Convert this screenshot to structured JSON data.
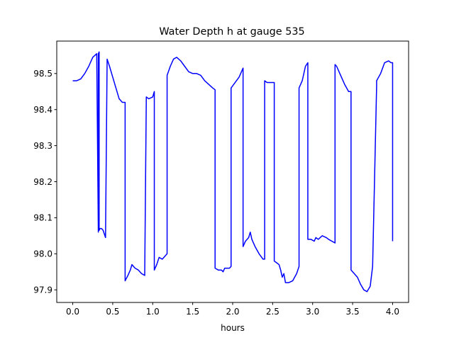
{
  "chart_data": {
    "type": "line",
    "title": "Water Depth h at gauge 535",
    "xlabel": "hours",
    "ylabel": "",
    "xlim": [
      -0.2,
      4.2
    ],
    "ylim": [
      97.865,
      98.59
    ],
    "xticks": [
      0.0,
      0.5,
      1.0,
      1.5,
      2.0,
      2.5,
      3.0,
      3.5,
      4.0
    ],
    "xtick_labels": [
      "0.0",
      "0.5",
      "1.0",
      "1.5",
      "2.0",
      "2.5",
      "3.0",
      "3.5",
      "4.0"
    ],
    "yticks": [
      97.9,
      98.0,
      98.1,
      98.2,
      98.3,
      98.4,
      98.5
    ],
    "ytick_labels": [
      "97.9",
      "98.0",
      "98.1",
      "98.2",
      "98.3",
      "98.4",
      "98.5"
    ],
    "grid": false,
    "colors": {
      "series": "#0000ff"
    },
    "series": [
      {
        "name": "",
        "x": [
          0.0,
          0.05,
          0.1,
          0.15,
          0.2,
          0.25,
          0.3,
          0.32,
          0.32,
          0.33,
          0.33,
          0.34,
          0.36,
          0.38,
          0.41,
          0.43,
          0.43,
          0.46,
          0.5,
          0.54,
          0.58,
          0.62,
          0.655,
          0.655,
          0.69,
          0.72,
          0.74,
          0.76,
          0.78,
          0.82,
          0.86,
          0.9,
          0.92,
          0.92,
          0.95,
          1.0,
          1.02,
          1.02,
          1.05,
          1.08,
          1.12,
          1.18,
          1.18,
          1.22,
          1.26,
          1.3,
          1.35,
          1.4,
          1.45,
          1.5,
          1.55,
          1.6,
          1.65,
          1.7,
          1.75,
          1.78,
          1.78,
          1.82,
          1.86,
          1.88,
          1.9,
          1.96,
          1.98,
          1.98,
          2.03,
          2.08,
          2.13,
          2.13,
          2.16,
          2.2,
          2.22,
          2.24,
          2.28,
          2.33,
          2.38,
          2.4,
          2.4,
          2.43,
          2.47,
          2.52,
          2.52,
          2.55,
          2.58,
          2.6,
          2.62,
          2.64,
          2.66,
          2.7,
          2.75,
          2.8,
          2.83,
          2.83,
          2.87,
          2.91,
          2.94,
          2.94,
          2.98,
          3.02,
          3.04,
          3.07,
          3.12,
          3.17,
          3.2,
          3.24,
          3.28,
          3.28,
          3.3,
          3.34,
          3.4,
          3.45,
          3.48,
          3.48,
          3.52,
          3.56,
          3.6,
          3.64,
          3.68,
          3.72,
          3.75,
          3.8,
          3.8,
          3.85,
          3.9,
          3.95,
          3.98,
          4.0,
          4.0
        ],
        "values": [
          98.48,
          98.48,
          98.485,
          98.5,
          98.52,
          98.545,
          98.555,
          98.06,
          98.555,
          98.56,
          98.065,
          98.07,
          98.07,
          98.065,
          98.045,
          98.54,
          98.54,
          98.52,
          98.49,
          98.46,
          98.43,
          98.42,
          98.42,
          97.925,
          97.94,
          97.955,
          97.97,
          97.965,
          97.96,
          97.955,
          97.945,
          97.94,
          98.435,
          98.435,
          98.43,
          98.435,
          98.45,
          97.955,
          97.97,
          97.99,
          97.985,
          98.0,
          98.495,
          98.52,
          98.54,
          98.545,
          98.535,
          98.52,
          98.505,
          98.5,
          98.5,
          98.495,
          98.48,
          98.47,
          98.46,
          98.455,
          97.96,
          97.955,
          97.955,
          97.95,
          97.96,
          97.96,
          97.965,
          98.46,
          98.475,
          98.49,
          98.515,
          98.02,
          98.035,
          98.045,
          98.06,
          98.04,
          98.02,
          98.0,
          97.985,
          97.985,
          98.48,
          98.475,
          98.475,
          98.475,
          97.98,
          97.975,
          97.97,
          97.955,
          97.935,
          97.945,
          97.92,
          97.92,
          97.925,
          97.945,
          97.965,
          98.46,
          98.48,
          98.52,
          98.53,
          98.04,
          98.04,
          98.035,
          98.045,
          98.04,
          98.05,
          98.045,
          98.04,
          98.035,
          98.03,
          98.525,
          98.52,
          98.5,
          98.47,
          98.45,
          98.45,
          97.955,
          97.945,
          97.935,
          97.915,
          97.9,
          97.895,
          97.91,
          97.965,
          98.465,
          98.48,
          98.5,
          98.53,
          98.535,
          98.53,
          98.53,
          98.035
        ]
      }
    ]
  }
}
